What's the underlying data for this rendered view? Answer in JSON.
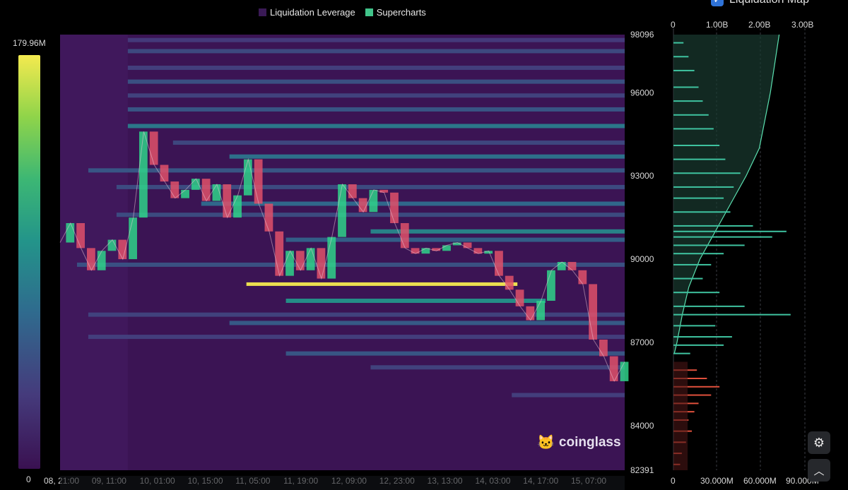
{
  "legend": {
    "items": [
      {
        "label": "Liquidation Leverage",
        "color": "#3a1a56"
      },
      {
        "label": "Supercharts",
        "color": "#41c48a"
      }
    ]
  },
  "colorbar": {
    "max_label": "179.96M",
    "min_label": "0"
  },
  "map_panel": {
    "title": "Liquidation Map",
    "top_axis": [
      "0",
      "1.00B",
      "2.00B",
      "3.00B"
    ],
    "bottom_axis": [
      "0",
      "30.000M",
      "60.000M",
      "90.000M"
    ]
  },
  "logo": {
    "text": "coinglass"
  },
  "buttons": {
    "settings_icon": "gear-icon",
    "top_icon": "chevron-up-icon"
  },
  "chart_data": {
    "type": "heatmap",
    "title": "",
    "y_ticks": [
      98096,
      96000,
      93000,
      90000,
      87000,
      84000,
      82391
    ],
    "ylim": [
      82391,
      98096
    ],
    "x_ticks": [
      "08, 21:00",
      "09, 11:00",
      "10, 01:00",
      "10, 15:00",
      "11, 05:00",
      "11, 19:00",
      "12, 09:00",
      "12, 23:00",
      "13, 13:00",
      "14, 03:00",
      "14, 17:00",
      "15, 07:00"
    ],
    "price_path": [
      90600,
      91300,
      90400,
      89600,
      90300,
      90700,
      90000,
      91500,
      94600,
      93400,
      92800,
      92200,
      92500,
      92900,
      92100,
      92700,
      91500,
      92300,
      93600,
      92000,
      91000,
      89400,
      90300,
      89600,
      90400,
      89300,
      90800,
      92700,
      92200,
      91700,
      92500,
      92400,
      91300,
      90400,
      90200,
      90400,
      90300,
      90500,
      90600,
      90400,
      90200,
      90300,
      89400,
      88900,
      88300,
      87800,
      88500,
      89600,
      89900,
      89600,
      89100,
      87100,
      86500,
      85600,
      86300
    ],
    "bands": [
      {
        "price": 89100,
        "intensity": 1.0,
        "start": 0.33,
        "end": 0.81
      },
      {
        "price": 88500,
        "intensity": 0.55,
        "start": 0.4,
        "end": 0.86
      },
      {
        "price": 91000,
        "intensity": 0.5,
        "start": 0.55,
        "end": 1.0
      },
      {
        "price": 94800,
        "intensity": 0.45,
        "start": 0.12,
        "end": 1.0
      },
      {
        "price": 93700,
        "intensity": 0.42,
        "start": 0.3,
        "end": 1.0
      },
      {
        "price": 92000,
        "intensity": 0.38,
        "start": 0.25,
        "end": 1.0
      },
      {
        "price": 95400,
        "intensity": 0.3,
        "start": 0.12,
        "end": 1.0
      },
      {
        "price": 96400,
        "intensity": 0.28,
        "start": 0.12,
        "end": 1.0
      },
      {
        "price": 97500,
        "intensity": 0.25,
        "start": 0.12,
        "end": 1.0
      },
      {
        "price": 90700,
        "intensity": 0.34,
        "start": 0.4,
        "end": 1.0
      },
      {
        "price": 87700,
        "intensity": 0.32,
        "start": 0.3,
        "end": 1.0
      },
      {
        "price": 86600,
        "intensity": 0.3,
        "start": 0.4,
        "end": 1.0
      },
      {
        "price": 93200,
        "intensity": 0.3,
        "start": 0.05,
        "end": 1.0
      },
      {
        "price": 95900,
        "intensity": 0.22,
        "start": 0.12,
        "end": 1.0
      },
      {
        "price": 89800,
        "intensity": 0.28,
        "start": 0.03,
        "end": 1.0
      },
      {
        "price": 88000,
        "intensity": 0.22,
        "start": 0.05,
        "end": 1.0
      },
      {
        "price": 87200,
        "intensity": 0.2,
        "start": 0.05,
        "end": 1.0
      },
      {
        "price": 91600,
        "intensity": 0.26,
        "start": 0.1,
        "end": 1.0
      },
      {
        "price": 86100,
        "intensity": 0.22,
        "start": 0.55,
        "end": 1.0
      },
      {
        "price": 85100,
        "intensity": 0.2,
        "start": 0.8,
        "end": 1.0
      },
      {
        "price": 96900,
        "intensity": 0.2,
        "start": 0.12,
        "end": 1.0
      },
      {
        "price": 97900,
        "intensity": 0.18,
        "start": 0.12,
        "end": 1.0
      },
      {
        "price": 94200,
        "intensity": 0.24,
        "start": 0.2,
        "end": 1.0
      },
      {
        "price": 92600,
        "intensity": 0.26,
        "start": 0.1,
        "end": 1.0
      }
    ],
    "map_short": [
      {
        "price": 97800,
        "value": 12
      },
      {
        "price": 97300,
        "value": 18
      },
      {
        "price": 96800,
        "value": 25
      },
      {
        "price": 96200,
        "value": 30
      },
      {
        "price": 95700,
        "value": 35
      },
      {
        "price": 95200,
        "value": 42
      },
      {
        "price": 94700,
        "value": 48
      },
      {
        "price": 94100,
        "value": 55
      },
      {
        "price": 93600,
        "value": 62
      },
      {
        "price": 93100,
        "value": 80
      },
      {
        "price": 92600,
        "value": 72
      },
      {
        "price": 92200,
        "value": 60
      },
      {
        "price": 91700,
        "value": 68
      },
      {
        "price": 91200,
        "value": 95
      },
      {
        "price": 91000,
        "value": 135
      },
      {
        "price": 90800,
        "value": 118
      },
      {
        "price": 90500,
        "value": 85
      },
      {
        "price": 90200,
        "value": 60
      },
      {
        "price": 89800,
        "value": 45
      },
      {
        "price": 89300,
        "value": 35
      },
      {
        "price": 88800,
        "value": 55
      },
      {
        "price": 88300,
        "value": 85
      },
      {
        "price": 88000,
        "value": 140
      },
      {
        "price": 87600,
        "value": 50
      },
      {
        "price": 87200,
        "value": 70
      },
      {
        "price": 86900,
        "value": 60
      },
      {
        "price": 86600,
        "value": 20
      }
    ],
    "map_long": [
      {
        "price": 86000,
        "value": 28
      },
      {
        "price": 85700,
        "value": 40
      },
      {
        "price": 85400,
        "value": 55
      },
      {
        "price": 85100,
        "value": 45
      },
      {
        "price": 84800,
        "value": 30
      },
      {
        "price": 84500,
        "value": 25
      },
      {
        "price": 84200,
        "value": 18
      },
      {
        "price": 83800,
        "value": 22
      },
      {
        "price": 83400,
        "value": 15
      },
      {
        "price": 83000,
        "value": 10
      },
      {
        "price": 82600,
        "value": 8
      }
    ],
    "map_cumulative": [
      [
        98096,
        2.4
      ],
      [
        96000,
        2.2
      ],
      [
        94000,
        1.95
      ],
      [
        93000,
        1.65
      ],
      [
        92000,
        1.3
      ],
      [
        91000,
        0.95
      ],
      [
        90000,
        0.6
      ],
      [
        89000,
        0.35
      ],
      [
        88000,
        0.2
      ],
      [
        87000,
        0.08
      ],
      [
        86600,
        0.02
      ]
    ]
  }
}
